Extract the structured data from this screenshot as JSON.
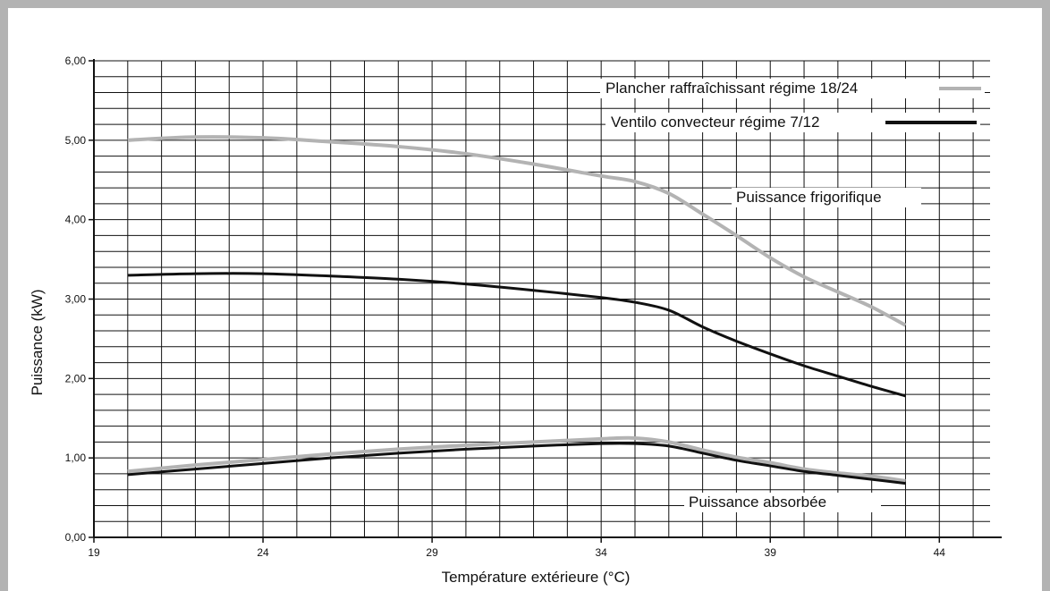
{
  "chart_data": {
    "type": "line",
    "xlabel": "Température extérieure (°C)",
    "ylabel": "Puissance (kW)",
    "xlim": [
      19,
      45.5
    ],
    "ylim": [
      0,
      6
    ],
    "x_ticks": [
      "19",
      "24",
      "29",
      "34",
      "39",
      "44"
    ],
    "y_ticks": [
      "0,00",
      "1,00",
      "2,00",
      "3,00",
      "4,00",
      "5,00",
      "6,00"
    ],
    "grid": true,
    "legend_position": "top-right",
    "legend": [
      {
        "label": "Plancher raffraîchissant régime 18/24",
        "color": "#b3b3b3"
      },
      {
        "label": "Ventilo convecteur régime 7/12",
        "color": "#111111"
      }
    ],
    "annotations": [
      "Puissance frigorifique",
      "Puissance absorbée"
    ],
    "series": [
      {
        "group": "frigorifique",
        "color": "#b3b3b3",
        "x": [
          20,
          22,
          24,
          26,
          28,
          30,
          32,
          34,
          35,
          36,
          37,
          38,
          39,
          40,
          41,
          42,
          43
        ],
        "y": [
          5.0,
          5.04,
          5.03,
          4.98,
          4.92,
          4.83,
          4.7,
          4.55,
          4.48,
          4.33,
          4.07,
          3.8,
          3.52,
          3.28,
          3.09,
          2.9,
          2.67
        ]
      },
      {
        "group": "frigorifique",
        "color": "#111111",
        "x": [
          20,
          22,
          24,
          26,
          28,
          30,
          32,
          34,
          35,
          36,
          37,
          38,
          39,
          40,
          41,
          42,
          43
        ],
        "y": [
          3.3,
          3.32,
          3.32,
          3.29,
          3.25,
          3.19,
          3.11,
          3.02,
          2.96,
          2.86,
          2.65,
          2.47,
          2.31,
          2.16,
          2.03,
          1.9,
          1.78
        ]
      },
      {
        "group": "absorbee",
        "color": "#b3b3b3",
        "x": [
          20,
          22,
          24,
          26,
          28,
          30,
          32,
          34,
          35,
          36,
          37,
          38,
          39,
          40,
          41,
          42,
          43
        ],
        "y": [
          0.83,
          0.91,
          0.98,
          1.05,
          1.11,
          1.16,
          1.2,
          1.24,
          1.25,
          1.2,
          1.1,
          1.01,
          0.94,
          0.86,
          0.81,
          0.77,
          0.71
        ]
      },
      {
        "group": "absorbee",
        "color": "#111111",
        "x": [
          20,
          22,
          24,
          26,
          28,
          30,
          32,
          34,
          35,
          36,
          37,
          38,
          39,
          40,
          41,
          42,
          43
        ],
        "y": [
          0.79,
          0.86,
          0.93,
          1.0,
          1.06,
          1.11,
          1.15,
          1.18,
          1.18,
          1.15,
          1.06,
          0.97,
          0.9,
          0.83,
          0.78,
          0.73,
          0.68
        ]
      }
    ]
  }
}
